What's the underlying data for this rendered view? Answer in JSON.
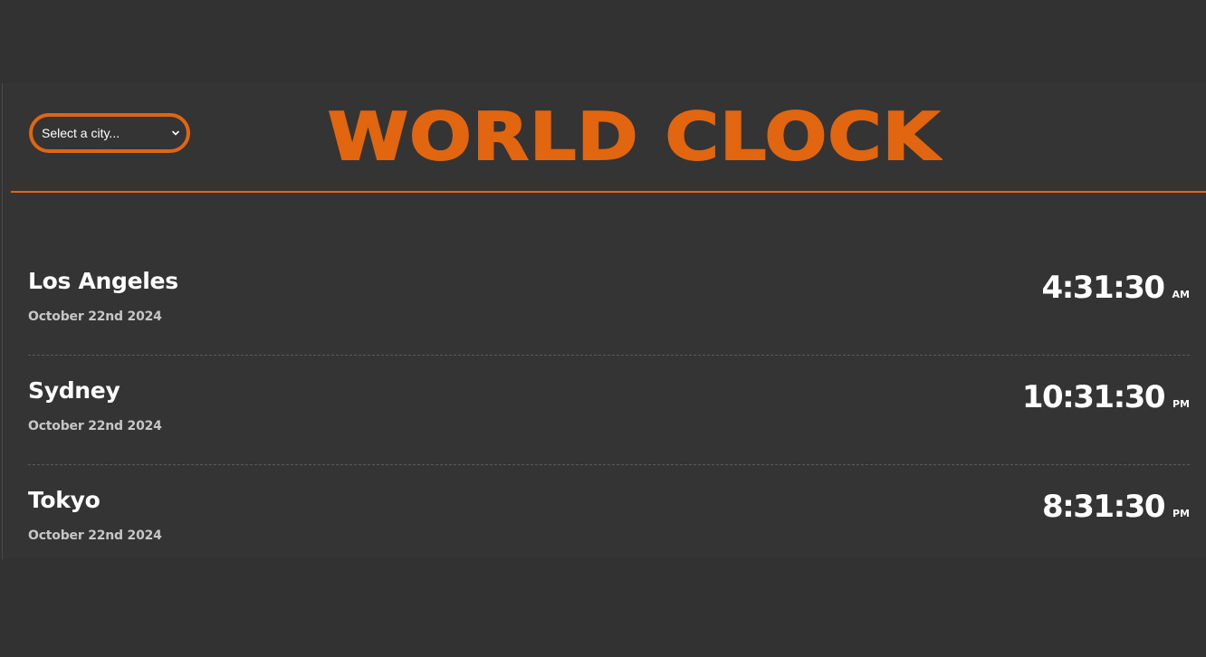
{
  "header": {
    "title": "WORLD CLOCK",
    "city_select": {
      "selected_label": "Select a city..."
    }
  },
  "cities": [
    {
      "name": "Los Angeles",
      "date": "October 22nd 2024",
      "time": "4:31:30",
      "ampm": "AM"
    },
    {
      "name": "Sydney",
      "date": "October 22nd 2024",
      "time": "10:31:30",
      "ampm": "PM"
    },
    {
      "name": "Tokyo",
      "date": "October 22nd 2024",
      "time": "8:31:30",
      "ampm": "PM"
    }
  ],
  "colors": {
    "background": "#323232",
    "accent": "#e2650f",
    "text": "#ffffff",
    "muted_text": "#c6c6c6",
    "divider": "#5a5a5a"
  },
  "icons": {
    "select_arrow": "chevron-down-icon"
  }
}
